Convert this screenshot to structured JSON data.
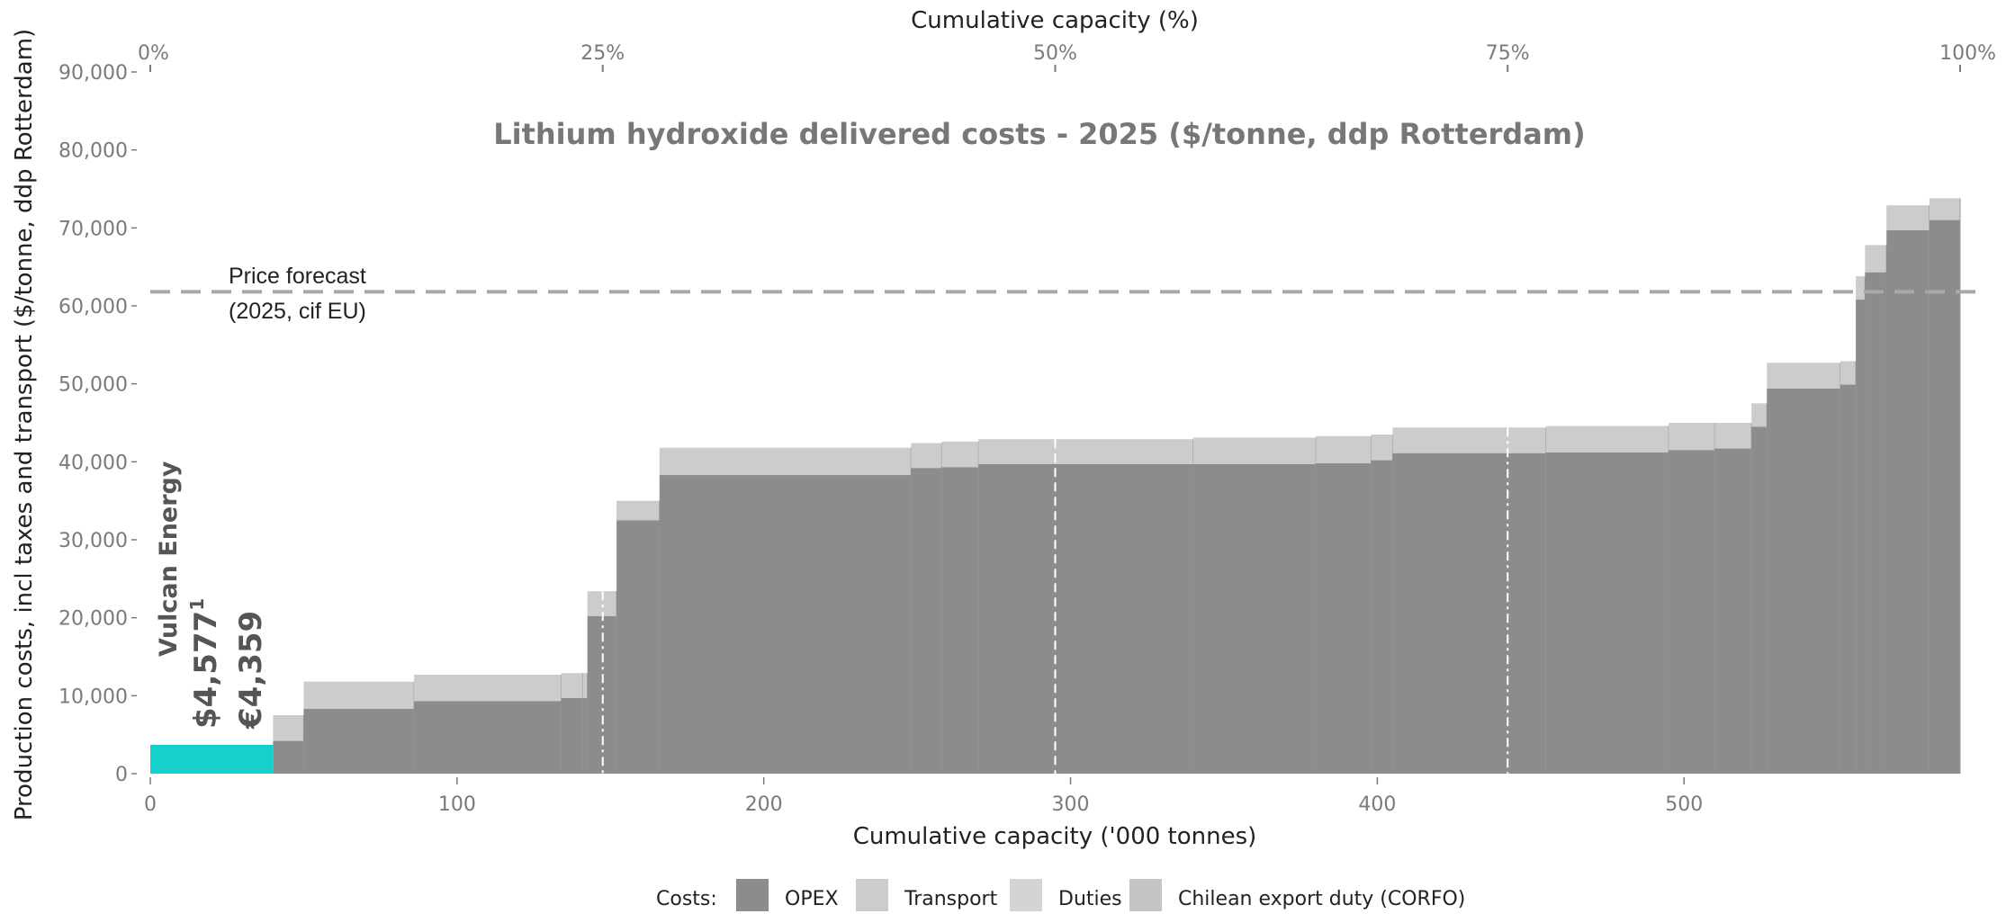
{
  "chart_data": {
    "type": "bar",
    "title": "Lithium hydroxide delivered costs - 2025 ($/tonne, ddp Rotterdam)",
    "xlabel": "Cumulative capacity ('000 tonnes)",
    "x2label": "Cumulative capacity (%)",
    "ylabel": "Production costs, incl taxes and transport ($/tonne, ddp Rotterdam)",
    "xlim": [
      0,
      590
    ],
    "ylim": [
      0,
      90000
    ],
    "x_ticks": [
      "0",
      "100",
      "200",
      "300",
      "400",
      "500"
    ],
    "x_tick_values": [
      0,
      100,
      200,
      300,
      400,
      500
    ],
    "x2_ticks": [
      "0%",
      "25%",
      "50%",
      "75%",
      "100%"
    ],
    "x2_tick_values": [
      0,
      25,
      50,
      75,
      100
    ],
    "y_ticks": [
      "0",
      "10,000",
      "20,000",
      "30,000",
      "40,000",
      "50,000",
      "60,000",
      "70,000",
      "80,000",
      "90,000"
    ],
    "y_tick_values": [
      0,
      10000,
      20000,
      30000,
      40000,
      50000,
      60000,
      70000,
      80000,
      90000
    ],
    "price_forecast": {
      "value": 61800,
      "label_line1": "Price forecast",
      "label_line2": "(2025, cif EU)"
    },
    "quartile_lines_x": [
      147.5,
      295,
      442.5
    ],
    "grid": false,
    "legend": {
      "position": "bottom",
      "title": "Costs:",
      "entries": [
        {
          "name": "OPEX",
          "color": "#8c8c8c"
        },
        {
          "name": "Transport",
          "color": "#cccccc"
        },
        {
          "name": "Duties",
          "color": "#d4d4d4"
        },
        {
          "name": "Chilean export duty (CORFO)",
          "color": "#c4c4c4"
        }
      ]
    },
    "highlight": {
      "name": "Vulcan Energy",
      "usd_label": "$4,577",
      "usd_sup": "1",
      "eur_label": "€4,359",
      "x_start": 0,
      "x_end": 40,
      "opex": 3700,
      "color": "#16d0cc"
    },
    "segments": [
      {
        "x0": 40,
        "x1": 50,
        "opex": 4200,
        "other": 3300
      },
      {
        "x0": 50,
        "x1": 86,
        "opex": 8300,
        "other": 3500
      },
      {
        "x0": 86,
        "x1": 134,
        "opex": 9300,
        "other": 3400
      },
      {
        "x0": 134,
        "x1": 141,
        "opex": 9700,
        "other": 3200
      },
      {
        "x0": 141,
        "x1": 142.5,
        "opex": 9700,
        "other": 3200
      },
      {
        "x0": 142.5,
        "x1": 152,
        "opex": 20200,
        "other": 3200
      },
      {
        "x0": 152,
        "x1": 166,
        "opex": 32500,
        "other": 2500
      },
      {
        "x0": 166,
        "x1": 248,
        "opex": 38300,
        "other": 3500
      },
      {
        "x0": 248,
        "x1": 258,
        "opex": 39200,
        "other": 3200
      },
      {
        "x0": 258,
        "x1": 270,
        "opex": 39300,
        "other": 3300
      },
      {
        "x0": 270,
        "x1": 340,
        "opex": 39700,
        "other": 3200
      },
      {
        "x0": 340,
        "x1": 380,
        "opex": 39700,
        "other": 3400
      },
      {
        "x0": 380,
        "x1": 398,
        "opex": 39800,
        "other": 3500
      },
      {
        "x0": 398,
        "x1": 405,
        "opex": 40200,
        "other": 3300
      },
      {
        "x0": 405,
        "x1": 455,
        "opex": 41100,
        "other": 3300
      },
      {
        "x0": 455,
        "x1": 495,
        "opex": 41200,
        "other": 3400
      },
      {
        "x0": 495,
        "x1": 510,
        "opex": 41500,
        "other": 3500
      },
      {
        "x0": 510,
        "x1": 522,
        "opex": 41700,
        "other": 3300
      },
      {
        "x0": 522,
        "x1": 527,
        "opex": 44500,
        "other": 3000
      },
      {
        "x0": 527,
        "x1": 551,
        "opex": 49400,
        "other": 3300
      },
      {
        "x0": 551,
        "x1": 556,
        "opex": 49900,
        "other": 3000
      },
      {
        "x0": 556,
        "x1": 559,
        "opex": 60800,
        "other": 3000
      },
      {
        "x0": 559,
        "x1": 566,
        "opex": 64300,
        "other": 3500
      },
      {
        "x0": 566,
        "x1": 580,
        "opex": 69700,
        "other": 3200
      },
      {
        "x0": 580,
        "x1": 590,
        "opex": 71000,
        "other": 2800
      }
    ]
  }
}
